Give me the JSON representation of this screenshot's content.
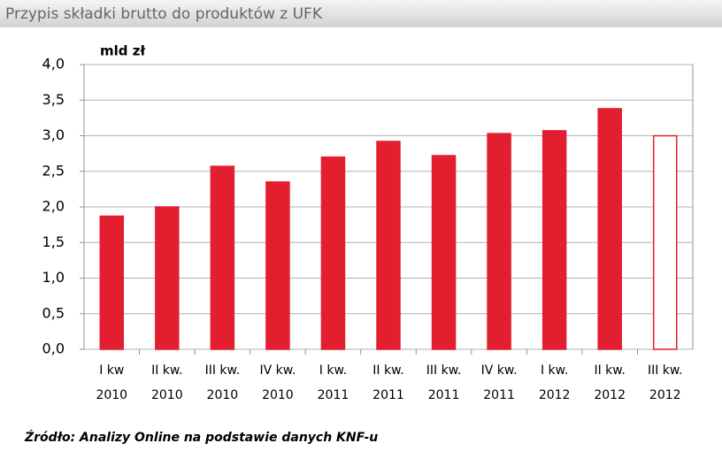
{
  "chart_data": {
    "type": "bar",
    "title": "Przypis składki brutto do produktów z UFK",
    "y_label": "mld zł",
    "source": "Źródło: Analizy Online na podstawie danych KNF-u",
    "categories": [
      [
        "I kw",
        "2010"
      ],
      [
        "II kw.",
        "2010"
      ],
      [
        "III kw.",
        "2010"
      ],
      [
        "IV kw.",
        "2010"
      ],
      [
        "I kw.",
        "2011"
      ],
      [
        "II kw.",
        "2011"
      ],
      [
        "III kw.",
        "2011"
      ],
      [
        "IV kw.",
        "2011"
      ],
      [
        "I kw.",
        "2012"
      ],
      [
        "II kw.",
        "2012"
      ],
      [
        "III kw.",
        "2012"
      ]
    ],
    "values": [
      1.87,
      2.0,
      2.57,
      2.35,
      2.7,
      2.92,
      2.72,
      3.03,
      3.07,
      3.38,
      3.0
    ],
    "color": "#e31e2e",
    "bar_fills": [
      "#e31e2e",
      "#e31e2e",
      "#e31e2e",
      "#e31e2e",
      "#e31e2e",
      "#e31e2e",
      "#e31e2e",
      "#e31e2e",
      "#e31e2e",
      "#e31e2e",
      "#ffffff"
    ],
    "ylim": [
      0,
      4
    ],
    "yticks": [
      {
        "value": 0,
        "label": "0,0"
      },
      {
        "value": 0.5,
        "label": "0,5"
      },
      {
        "value": 1,
        "label": "1,0"
      },
      {
        "value": 1.5,
        "label": "1,5"
      },
      {
        "value": 2,
        "label": "2,0"
      },
      {
        "value": 2.5,
        "label": "2,5"
      },
      {
        "value": 3,
        "label": "3,0"
      },
      {
        "value": 3.5,
        "label": "3,5"
      },
      {
        "value": 4,
        "label": "4,0"
      }
    ],
    "grid": true
  }
}
